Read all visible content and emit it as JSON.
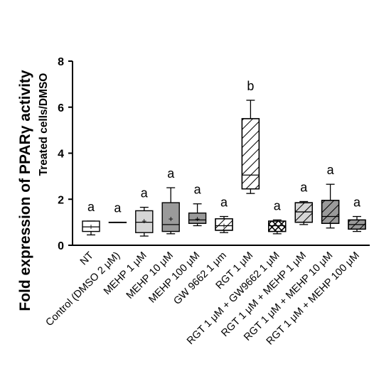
{
  "chart_data": {
    "type": "box",
    "ylabel_line1": "Fold expression of  PPARγ activity",
    "ylabel_line2": "Treated cells/DMSO",
    "ylim": [
      0,
      8
    ],
    "yticks": [
      0,
      2,
      4,
      6,
      8
    ],
    "grid": false,
    "categories": [
      "NT",
      "Control (DMSO 2 μM)",
      "MEHP 1 μM",
      "MEHP 10 μM",
      "MEHP 100 μM",
      "GW 9662 1 μm",
      "RGT 1 μM",
      "RGT 1 μM + GW9662 1 μM",
      "RGT 1 μM + MEHP 1 μM",
      "RGT 1 μM + MEHP 10 μM",
      "RGT 1 μM + MEHP 100 μM"
    ],
    "boxes": [
      {
        "min": 0.45,
        "q1": 0.6,
        "median": 0.8,
        "q3": 1.05,
        "max": 1.05,
        "mean": 0.8,
        "fill": "white",
        "hatch": "none"
      },
      {
        "min": 1.0,
        "q1": 1.0,
        "median": 1.0,
        "q3": 1.0,
        "max": 1.0,
        "mean": null,
        "fill": "white",
        "hatch": "none"
      },
      {
        "min": 0.4,
        "q1": 0.55,
        "median": 1.0,
        "q3": 1.5,
        "max": 1.65,
        "mean": 1.05,
        "fill": "lightgray",
        "hatch": "none"
      },
      {
        "min": 0.5,
        "q1": 0.6,
        "median": 0.9,
        "q3": 1.85,
        "max": 2.5,
        "mean": 1.15,
        "fill": "darkgray",
        "hatch": "none"
      },
      {
        "min": 0.85,
        "q1": 0.95,
        "median": 1.1,
        "q3": 1.4,
        "max": 1.8,
        "mean": 1.15,
        "fill": "darkgray",
        "hatch": "none"
      },
      {
        "min": 0.55,
        "q1": 0.65,
        "median": 0.85,
        "q3": 1.15,
        "max": 1.25,
        "mean": 0.85,
        "fill": "white",
        "hatch": "diag"
      },
      {
        "min": 2.25,
        "q1": 2.45,
        "median": 3.05,
        "q3": 5.5,
        "max": 6.3,
        "mean": null,
        "fill": "white",
        "hatch": "diag"
      },
      {
        "min": 0.5,
        "q1": 0.6,
        "median": 0.85,
        "q3": 1.05,
        "max": 1.1,
        "mean": null,
        "fill": "white",
        "hatch": "cross"
      },
      {
        "min": 0.9,
        "q1": 1.0,
        "median": 1.45,
        "q3": 1.85,
        "max": 1.9,
        "mean": null,
        "fill": "lightgray",
        "hatch": "diag"
      },
      {
        "min": 0.75,
        "q1": 0.95,
        "median": 1.25,
        "q3": 1.95,
        "max": 2.65,
        "mean": null,
        "fill": "darkgray",
        "hatch": "diag"
      },
      {
        "min": 0.6,
        "q1": 0.7,
        "median": 0.9,
        "q3": 1.1,
        "max": 1.25,
        "mean": null,
        "fill": "darkgray",
        "hatch": "diag"
      }
    ],
    "annotations": [
      "a",
      "a",
      "a",
      "a",
      "a",
      "a",
      "b",
      "a",
      "a",
      "a",
      "a"
    ],
    "colors": {
      "lightgray": "#d6d6d6",
      "darkgray": "#9a9a9a",
      "white": "#ffffff",
      "line": "#000000"
    }
  }
}
